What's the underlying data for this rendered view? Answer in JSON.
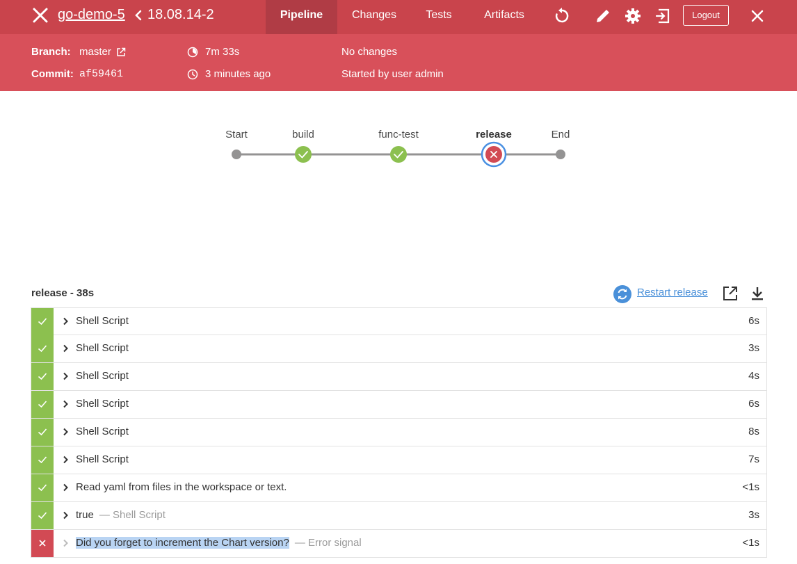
{
  "header": {
    "pipeline_name": "go-demo-5",
    "run_name": "18.08.14-2",
    "tabs": [
      {
        "label": "Pipeline",
        "active": true
      },
      {
        "label": "Changes",
        "active": false
      },
      {
        "label": "Tests",
        "active": false
      },
      {
        "label": "Artifacts",
        "active": false
      }
    ],
    "icons": [
      "close-icon",
      "back-chevron-icon",
      "replay-icon",
      "edit-pencil-icon",
      "settings-gear-icon",
      "exit-icon",
      "close-icon"
    ],
    "logout_label": "Logout",
    "color": "#c9444c"
  },
  "info": {
    "branch_label": "Branch:",
    "branch_value": "master",
    "commit_label": "Commit:",
    "commit_value": "af59461",
    "duration": "7m 33s",
    "time_ago": "3 minutes ago",
    "changes": "No changes",
    "started_by": "Started by user admin",
    "color": "#d8505a"
  },
  "graph": {
    "stages": [
      {
        "label": "Start",
        "status": "start"
      },
      {
        "label": "build",
        "status": "success"
      },
      {
        "label": "func-test",
        "status": "success"
      },
      {
        "label": "release",
        "status": "failed",
        "selected": true
      },
      {
        "label": "End",
        "status": "end"
      }
    ],
    "success_color": "#8cc04f",
    "failed_color": "#d24a54"
  },
  "panel": {
    "title": "release - 38s",
    "restart_label": "Restart release"
  },
  "steps": [
    {
      "label": "Shell Script",
      "sub": "",
      "duration": "6s",
      "status": "success"
    },
    {
      "label": "Shell Script",
      "sub": "",
      "duration": "3s",
      "status": "success"
    },
    {
      "label": "Shell Script",
      "sub": "",
      "duration": "4s",
      "status": "success"
    },
    {
      "label": "Shell Script",
      "sub": "",
      "duration": "6s",
      "status": "success"
    },
    {
      "label": "Shell Script",
      "sub": "",
      "duration": "8s",
      "status": "success"
    },
    {
      "label": "Shell Script",
      "sub": "",
      "duration": "7s",
      "status": "success"
    },
    {
      "label": "Read yaml from files in the workspace or text.",
      "sub": "",
      "duration": "<1s",
      "status": "success"
    },
    {
      "label": "true",
      "sub": "— Shell Script",
      "duration": "3s",
      "status": "success"
    },
    {
      "label": "Did you forget to increment the Chart version?",
      "sub": "— Error signal",
      "duration": "<1s",
      "status": "failed"
    }
  ]
}
